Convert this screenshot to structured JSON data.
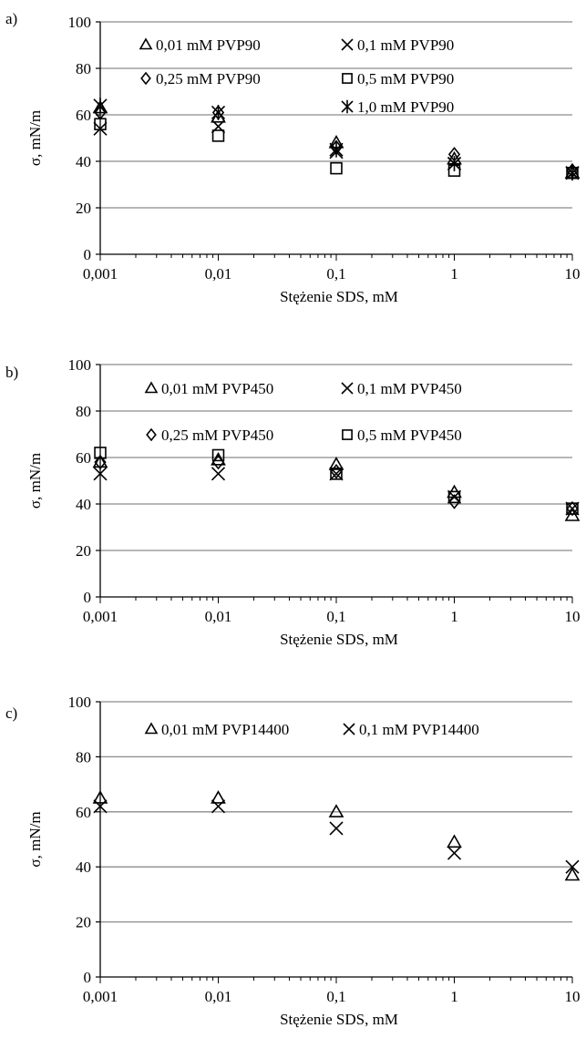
{
  "chart_data": [
    {
      "type": "scatter",
      "panel_label": "a)",
      "xlabel": "Stężenie SDS, mM",
      "ylabel": "σ, mN/m",
      "x_scale": "log",
      "xlim": [
        0.001,
        10
      ],
      "ylim": [
        0,
        100
      ],
      "x_tick_labels": [
        "0,001",
        "0,01",
        "0,1",
        "1",
        "10"
      ],
      "y_tick_labels": [
        "0",
        "20",
        "40",
        "60",
        "80",
        "100"
      ],
      "grid": "horizontal",
      "legend_position": "inside-top",
      "x": [
        0.001,
        0.01,
        0.1,
        1,
        10
      ],
      "series": [
        {
          "name": "0,01 mM  PVP90",
          "marker": "triangle",
          "values": [
            63,
            59,
            48,
            41,
            35
          ]
        },
        {
          "name": "0,1 mM  PVP90",
          "marker": "x",
          "values": [
            54,
            55,
            44,
            39,
            35
          ]
        },
        {
          "name": "0,25 mM  PVP90",
          "marker": "diamond",
          "values": [
            61,
            61,
            46,
            43,
            36
          ]
        },
        {
          "name": "0,5 mM  PVP90",
          "marker": "square",
          "values": [
            56,
            51,
            37,
            36,
            35
          ]
        },
        {
          "name": "1,0 mM  PVP90",
          "marker": "star",
          "values": [
            64,
            61,
            45,
            39,
            35
          ]
        }
      ]
    },
    {
      "type": "scatter",
      "panel_label": "b)",
      "xlabel": "Stężenie SDS, mM",
      "ylabel": "σ, mN/m",
      "x_scale": "log",
      "xlim": [
        0.001,
        10
      ],
      "ylim": [
        0,
        100
      ],
      "x_tick_labels": [
        "0,001",
        "0,01",
        "0,1",
        "1",
        "10"
      ],
      "y_tick_labels": [
        "0",
        "20",
        "40",
        "60",
        "80",
        "100"
      ],
      "grid": "horizontal",
      "legend_position": "inside-top",
      "x": [
        0.001,
        0.01,
        0.1,
        1,
        10
      ],
      "series": [
        {
          "name": "0,01 mM  PVP450",
          "marker": "triangle",
          "values": [
            58,
            59,
            57,
            45,
            35
          ]
        },
        {
          "name": "0,1 mM  PVP450",
          "marker": "x",
          "values": [
            53,
            53,
            53,
            43,
            38
          ]
        },
        {
          "name": "0,25 mM  PVP450",
          "marker": "diamond",
          "values": [
            58,
            58,
            54,
            41,
            38
          ]
        },
        {
          "name": "0,5 mM  PVP450",
          "marker": "square",
          "values": [
            62,
            61,
            53,
            43,
            38
          ]
        }
      ]
    },
    {
      "type": "scatter",
      "panel_label": "c)",
      "xlabel": "Stężenie SDS, mM",
      "ylabel": "σ, mN/m",
      "x_scale": "log",
      "xlim": [
        0.001,
        10
      ],
      "ylim": [
        0,
        100
      ],
      "x_tick_labels": [
        "0,001",
        "0,01",
        "0,1",
        "1",
        "10"
      ],
      "y_tick_labels": [
        "0",
        "20",
        "40",
        "60",
        "80",
        "100"
      ],
      "grid": "horizontal",
      "legend_position": "inside-top",
      "x": [
        0.001,
        0.01,
        0.1,
        1,
        10
      ],
      "series": [
        {
          "name": "0,01 mM  PVP14400",
          "marker": "triangle",
          "values": [
            65,
            65,
            60,
            49,
            37
          ]
        },
        {
          "name": "0,1 mM  PVP14400",
          "marker": "x",
          "values": [
            62,
            62,
            54,
            45,
            40
          ]
        }
      ]
    }
  ]
}
